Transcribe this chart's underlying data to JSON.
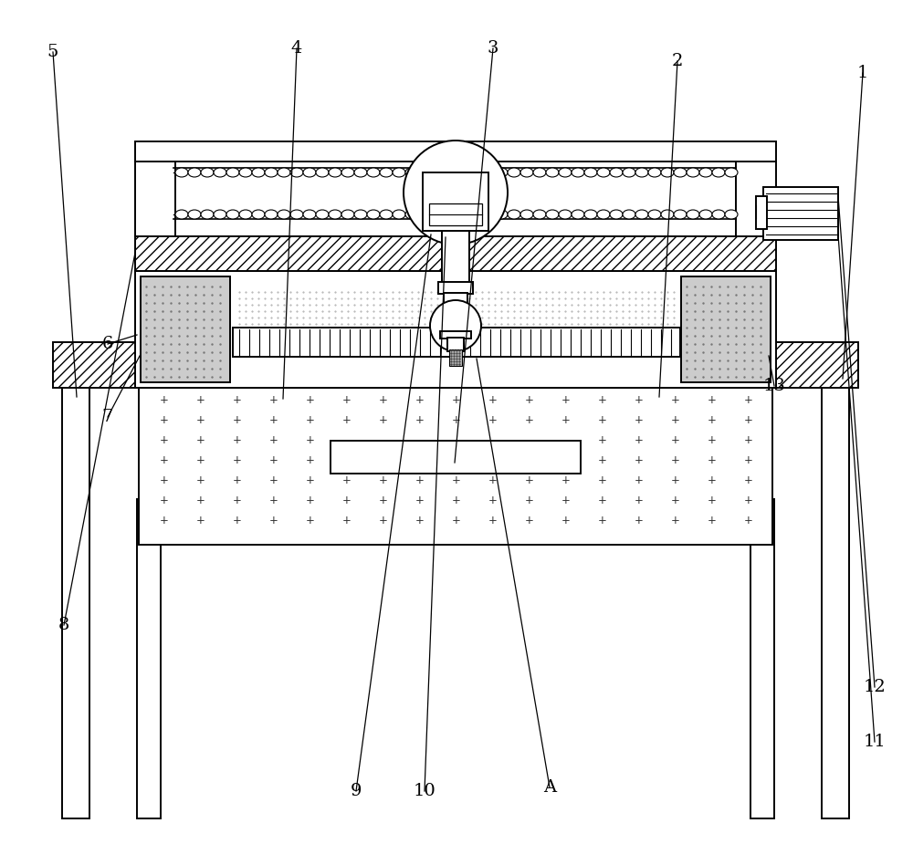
{
  "bg_color": "#ffffff",
  "line_color": "#000000",
  "fig_width": 10.0,
  "fig_height": 9.25,
  "lw": 1.4,
  "annotations": [
    [
      "1",
      945,
      845,
      923,
      510
    ],
    [
      "2",
      742,
      858,
      722,
      490
    ],
    [
      "3",
      540,
      872,
      498,
      418
    ],
    [
      "4",
      325,
      872,
      310,
      488
    ],
    [
      "5",
      58,
      868,
      84,
      490
    ],
    [
      "6",
      118,
      548,
      150,
      558
    ],
    [
      "7",
      118,
      468,
      153,
      535
    ],
    [
      "8",
      70,
      240,
      148,
      648
    ],
    [
      "9",
      390,
      58,
      472,
      668
    ],
    [
      "10",
      465,
      58,
      488,
      665
    ],
    [
      "11",
      958,
      112,
      918,
      668
    ],
    [
      "12",
      958,
      172,
      918,
      710
    ],
    [
      "13",
      848,
      502,
      842,
      535
    ],
    [
      "A",
      602,
      62,
      522,
      532
    ]
  ]
}
